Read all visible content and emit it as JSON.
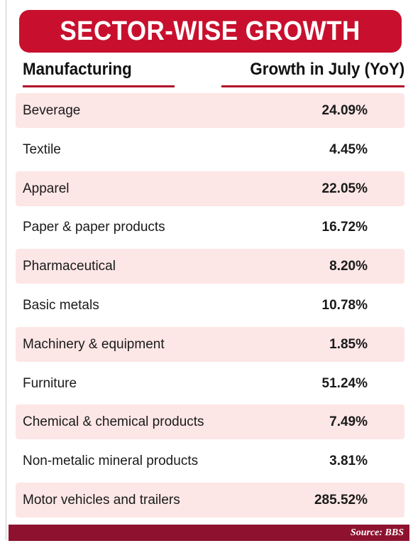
{
  "title": "SECTOR-WISE GROWTH",
  "header": {
    "left": "Manufacturing",
    "right": "Growth in July (YoY)"
  },
  "colors": {
    "title_bg": "#c8102e",
    "row_shade": "#fde6e6",
    "underline": "#b0102a",
    "footer_bg": "#8e1230"
  },
  "source": "Source: BBS",
  "chart_data": {
    "type": "table",
    "title": "SECTOR-WISE GROWTH",
    "columns": [
      "Manufacturing",
      "Growth in July (YoY)"
    ],
    "rows": [
      {
        "sector": "Beverage",
        "growth_label": "24.09%",
        "growth": 24.09
      },
      {
        "sector": "Textile",
        "growth_label": "4.45%",
        "growth": 4.45
      },
      {
        "sector": "Apparel",
        "growth_label": "22.05%",
        "growth": 22.05
      },
      {
        "sector": "Paper & paper products",
        "growth_label": "16.72%",
        "growth": 16.72
      },
      {
        "sector": "Pharmaceutical",
        "growth_label": "8.20%",
        "growth": 8.2
      },
      {
        "sector": "Basic metals",
        "growth_label": "10.78%",
        "growth": 10.78
      },
      {
        "sector": "Machinery & equipment",
        "growth_label": "1.85%",
        "growth": 1.85
      },
      {
        "sector": "Furniture",
        "growth_label": "51.24%",
        "growth": 51.24
      },
      {
        "sector": "Chemical & chemical products",
        "growth_label": "7.49%",
        "growth": 7.49
      },
      {
        "sector": "Non-metalic mineral products",
        "growth_label": "3.81%",
        "growth": 3.81
      },
      {
        "sector": "Motor vehicles and trailers",
        "growth_label": "285.52%",
        "growth": 285.52
      }
    ]
  }
}
